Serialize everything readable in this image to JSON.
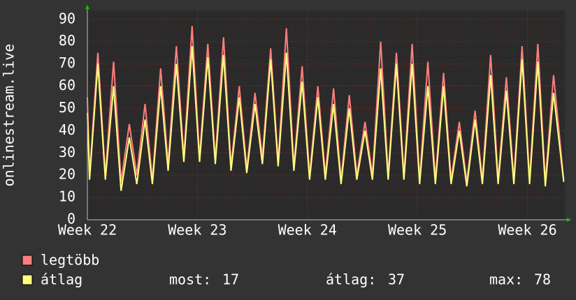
{
  "chart_data": {
    "type": "line",
    "y_label": "onlinestream.live",
    "x": [
      22.0,
      22.02,
      22.095,
      22.163,
      22.238,
      22.306,
      22.381,
      22.449,
      22.524,
      22.591,
      22.666,
      22.734,
      22.809,
      22.877,
      22.952,
      23.02,
      23.095,
      23.163,
      23.238,
      23.306,
      23.381,
      23.449,
      23.524,
      23.591,
      23.666,
      23.734,
      23.809,
      23.877,
      23.952,
      24.02,
      24.095,
      24.163,
      24.238,
      24.306,
      24.381,
      24.449,
      24.524,
      24.591,
      24.666,
      24.734,
      24.809,
      24.877,
      24.952,
      25.02,
      25.095,
      25.163,
      25.238,
      25.306,
      25.381,
      25.449,
      25.524,
      25.591,
      25.666,
      25.734,
      25.809,
      25.877,
      25.952,
      26.02,
      26.095,
      26.163,
      26.238,
      26.33
    ],
    "series": [
      {
        "name": "legtöbb",
        "color": "#ff7f7f",
        "values": [
          55,
          20,
          75,
          20,
          71,
          17,
          43,
          20,
          52,
          18,
          68,
          25,
          78,
          28,
          87,
          28,
          79,
          27,
          82,
          24,
          60,
          23,
          57,
          28,
          77,
          26,
          86,
          24,
          69,
          20,
          60,
          20,
          59,
          18,
          56,
          20,
          44,
          20,
          80,
          20,
          75,
          20,
          79,
          18,
          71,
          18,
          66,
          18,
          44,
          17,
          49,
          18,
          74,
          18,
          64,
          18,
          78,
          18,
          79,
          17,
          65,
          18
        ]
      },
      {
        "name": "átlag",
        "color": "#ffff7f",
        "values": [
          48,
          18,
          70,
          18,
          60,
          13,
          37,
          16,
          45,
          16,
          60,
          22,
          70,
          26,
          78,
          26,
          73,
          25,
          74,
          22,
          55,
          21,
          52,
          25,
          72,
          24,
          75,
          22,
          62,
          18,
          55,
          18,
          52,
          16,
          50,
          18,
          40,
          18,
          68,
          18,
          70,
          18,
          70,
          16,
          60,
          16,
          60,
          16,
          40,
          15,
          45,
          16,
          65,
          16,
          58,
          16,
          72,
          16,
          71,
          15,
          57,
          17
        ]
      }
    ],
    "xlim": [
      22,
      26.34
    ],
    "xticks": [
      {
        "value": 22,
        "label": "Week 22"
      },
      {
        "value": 23,
        "label": "Week 23"
      },
      {
        "value": 24,
        "label": "Week 24"
      },
      {
        "value": 25,
        "label": "Week 25"
      },
      {
        "value": 26,
        "label": "Week 26"
      }
    ],
    "ylim": [
      0,
      94
    ],
    "yticks": [
      0,
      10,
      20,
      30,
      40,
      50,
      60,
      70,
      80,
      90
    ],
    "grid": true,
    "stats": [
      {
        "label": "most:",
        "value": 17
      },
      {
        "label": "átlag:",
        "value": 37
      },
      {
        "label": "max:",
        "value": 78
      }
    ]
  }
}
